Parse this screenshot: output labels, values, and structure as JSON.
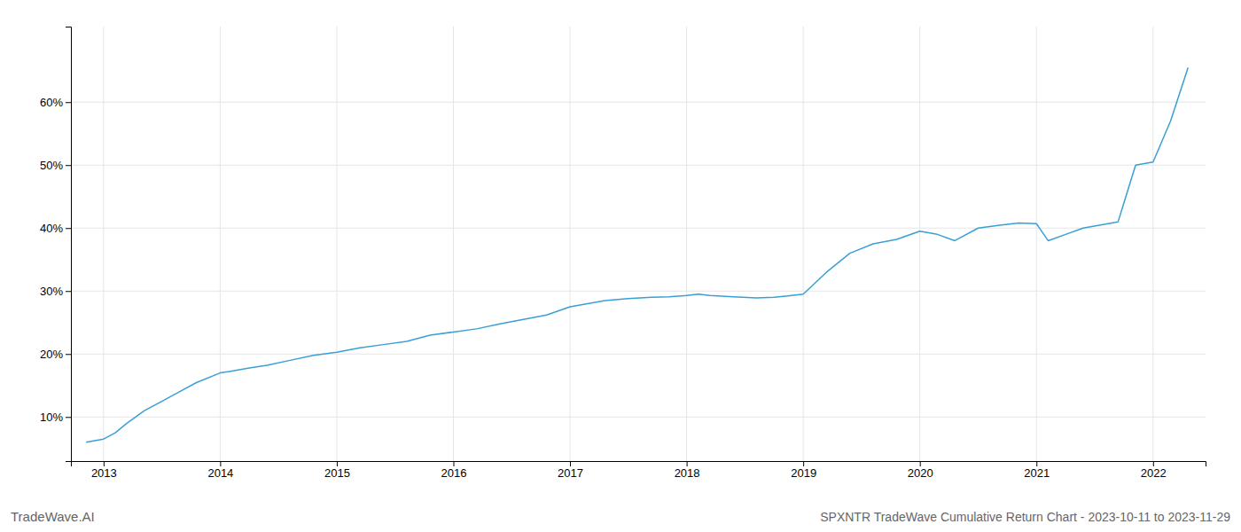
{
  "chart_data": {
    "type": "line",
    "title": "SPXNTR TradeWave Cumulative Return Chart - 2023-10-11 to 2023-11-29",
    "annotations": [
      "TradeWave.AI"
    ],
    "x": [
      2012.85,
      2013.0,
      2013.1,
      2013.2,
      2013.35,
      2013.5,
      2013.65,
      2013.8,
      2014.0,
      2014.1,
      2014.25,
      2014.4,
      2014.6,
      2014.8,
      2015.0,
      2015.2,
      2015.4,
      2015.6,
      2015.8,
      2016.0,
      2016.2,
      2016.4,
      2016.6,
      2016.8,
      2017.0,
      2017.15,
      2017.3,
      2017.5,
      2017.7,
      2017.85,
      2018.0,
      2018.1,
      2018.2,
      2018.4,
      2018.6,
      2018.75,
      2018.85,
      2019.0,
      2019.2,
      2019.4,
      2019.6,
      2019.8,
      2020.0,
      2020.15,
      2020.3,
      2020.5,
      2020.7,
      2020.85,
      2021.0,
      2021.1,
      2021.25,
      2021.4,
      2021.55,
      2021.7,
      2021.85,
      2022.0,
      2022.15,
      2022.3
    ],
    "values": [
      6.0,
      6.5,
      7.5,
      9.0,
      11.0,
      12.5,
      14.0,
      15.5,
      17.0,
      17.3,
      17.8,
      18.2,
      19.0,
      19.8,
      20.3,
      21.0,
      21.5,
      22.0,
      23.0,
      23.5,
      24.0,
      24.8,
      25.5,
      26.2,
      27.5,
      28.0,
      28.5,
      28.8,
      29.0,
      29.1,
      29.3,
      29.5,
      29.3,
      29.1,
      28.9,
      29.0,
      29.2,
      29.5,
      33.0,
      36.0,
      37.5,
      38.2,
      39.5,
      39.0,
      38.0,
      40.0,
      40.5,
      40.8,
      40.7,
      38.0,
      39.0,
      40.0,
      40.5,
      41.0,
      50.0,
      50.5,
      57.0,
      65.5
    ],
    "color": "#3a9fd6",
    "xlim": [
      2012.72,
      2022.45
    ],
    "ylim": [
      3,
      72
    ],
    "xticks": [
      2013,
      2014,
      2015,
      2016,
      2017,
      2018,
      2019,
      2020,
      2021,
      2022
    ],
    "yticks": [
      {
        "value": 10,
        "label": "10%"
      },
      {
        "value": 20,
        "label": "20%"
      },
      {
        "value": 30,
        "label": "30%"
      },
      {
        "value": 40,
        "label": "40%"
      },
      {
        "value": 50,
        "label": "50%"
      },
      {
        "value": 60,
        "label": "60%"
      }
    ],
    "grid": true
  }
}
